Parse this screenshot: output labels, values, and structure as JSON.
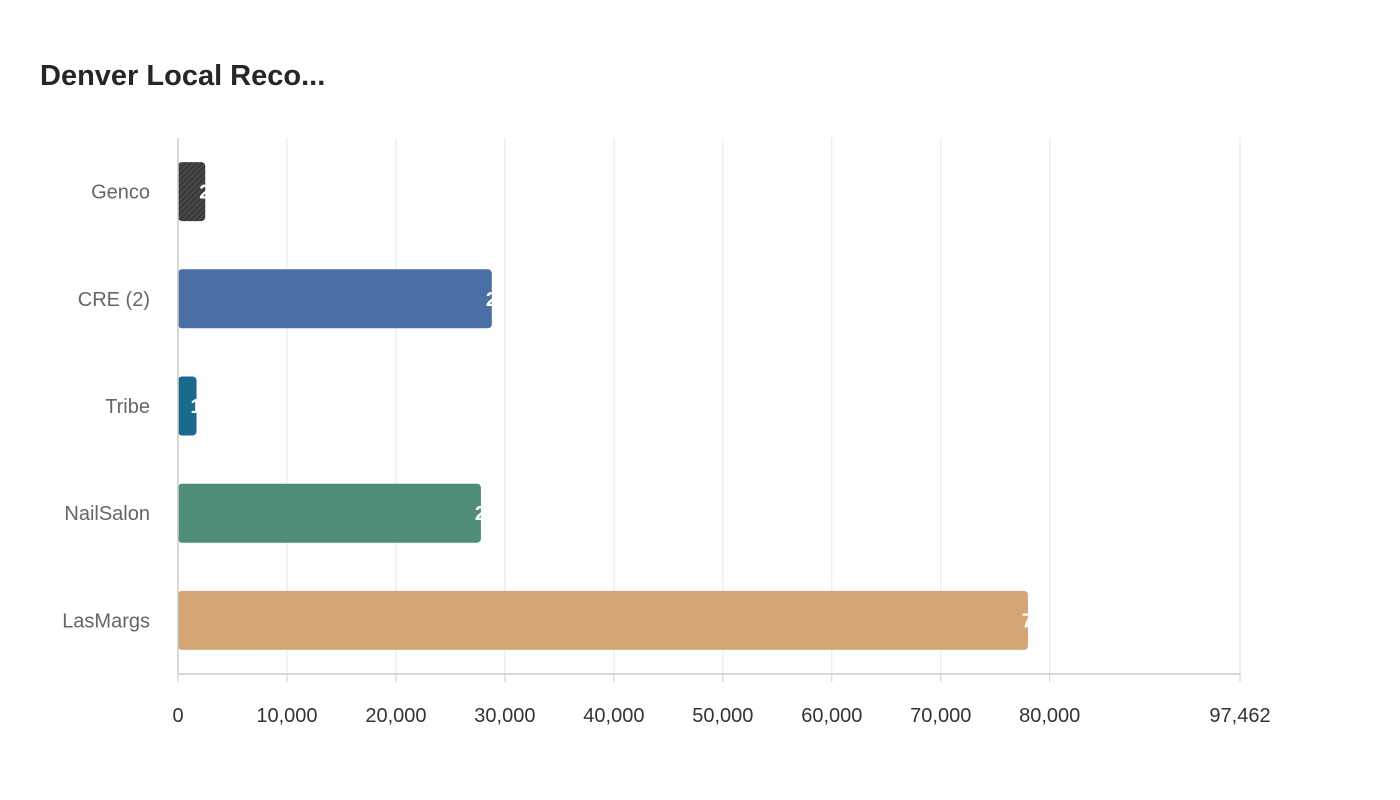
{
  "chart_data": {
    "type": "bar",
    "orientation": "horizontal",
    "title": "Denver Local Reco...",
    "xlabel": "",
    "ylabel": "",
    "categories": [
      "Genco",
      "CRE (2)",
      "Tribe",
      "NailSalon",
      "LasMargs"
    ],
    "values": [
      2500,
      28800,
      1700,
      27800,
      78000
    ],
    "colors": [
      "#3a3a3a",
      "#4a6fa5",
      "#1a6a8e",
      "#4f8c7a",
      "#d4a575"
    ],
    "xlim": [
      0,
      97462
    ],
    "xticks": [
      0,
      10000,
      20000,
      30000,
      40000,
      50000,
      60000,
      70000,
      80000,
      97462
    ],
    "xtick_labels": [
      "0",
      "10,000",
      "20,000",
      "30,000",
      "40,000",
      "50,000",
      "60,000",
      "70,000",
      "80,000",
      "97,462"
    ],
    "grid": true,
    "legend": false
  }
}
